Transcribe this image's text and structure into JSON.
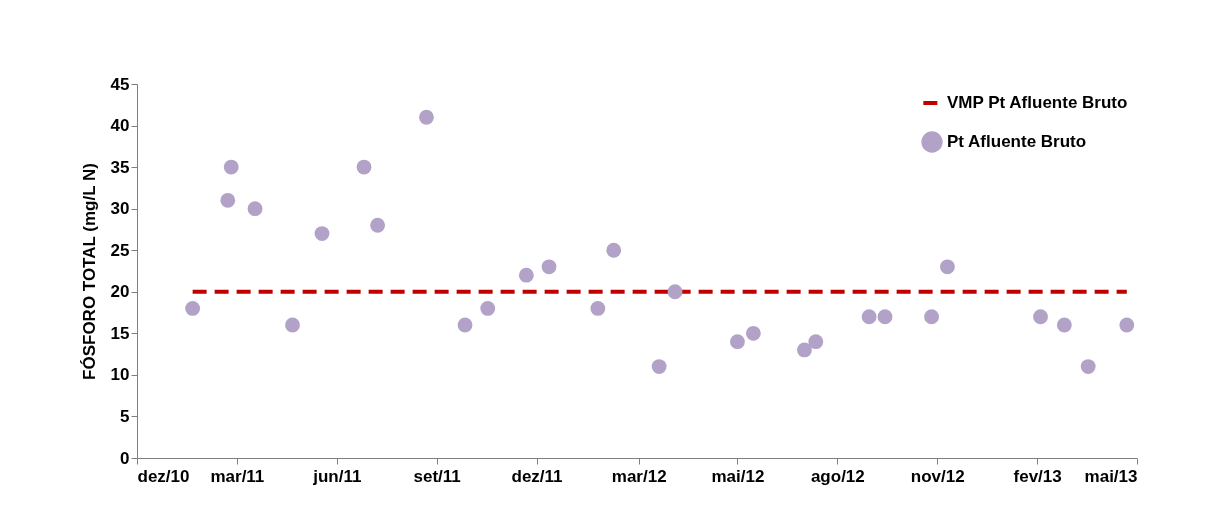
{
  "chart_data": {
    "type": "scatter",
    "ylabel": "FÓSFORO TOTAL (mg/L N)",
    "xlim": [
      "2010-12-15",
      "2013-05-14"
    ],
    "xticks": [
      {
        "value": "2010-12-15",
        "label": "dez/10"
      },
      {
        "value": "2011-03-13",
        "label": "mar/11"
      },
      {
        "value": "2011-06-09",
        "label": "jun/11"
      },
      {
        "value": "2011-09-05",
        "label": "set/11"
      },
      {
        "value": "2011-12-02",
        "label": "dez/11"
      },
      {
        "value": "2012-03-01",
        "label": "mar/12"
      },
      {
        "value": "2012-05-27",
        "label": "mai/12"
      },
      {
        "value": "2012-08-23",
        "label": "ago/12"
      },
      {
        "value": "2012-11-19",
        "label": "nov/12"
      },
      {
        "value": "2013-02-15",
        "label": "fev/13"
      },
      {
        "value": "2013-05-14",
        "label": "mai/13"
      }
    ],
    "ylim": [
      0,
      45
    ],
    "yticks": [
      0,
      5,
      10,
      15,
      20,
      25,
      30,
      35,
      40,
      45
    ],
    "grid": false,
    "legend": "top right",
    "series": [
      {
        "name": "VMP Pt Afluente Bruto",
        "type": "line",
        "line_style": "dashed",
        "color": "#c00000",
        "x": [
          "2011-02-02",
          "2013-05-05"
        ],
        "values": [
          20,
          20
        ]
      },
      {
        "name": "Pt Afluente Bruto",
        "marker": "circle",
        "color": "#b3a2c7",
        "x": [
          "2011-02-02",
          "2011-03-05",
          "2011-03-08",
          "2011-03-29",
          "2011-05-01",
          "2011-05-27",
          "2011-07-03",
          "2011-07-15",
          "2011-08-27",
          "2011-09-30",
          "2011-10-20",
          "2011-11-23",
          "2011-12-13",
          "2012-01-25",
          "2012-02-08",
          "2012-03-19",
          "2012-04-02",
          "2012-05-27",
          "2012-06-10",
          "2012-07-25",
          "2012-08-04",
          "2012-09-20",
          "2012-10-04",
          "2012-11-14",
          "2012-11-28",
          "2013-02-18",
          "2013-03-11",
          "2013-04-01",
          "2013-05-05"
        ],
        "values": [
          18,
          31,
          35,
          30,
          16,
          27,
          35,
          28,
          41,
          16,
          18,
          22,
          23,
          18,
          25,
          11,
          20,
          14,
          15,
          13,
          14,
          17,
          17,
          17,
          23,
          17,
          16,
          11,
          16
        ]
      }
    ]
  }
}
